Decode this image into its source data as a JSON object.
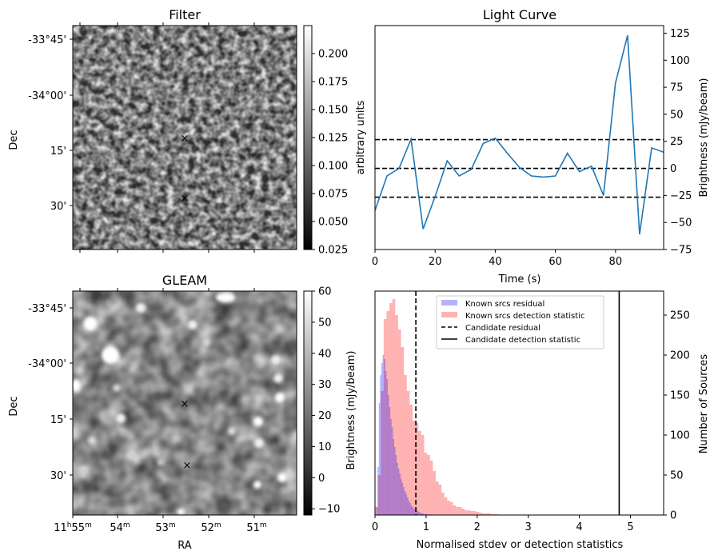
{
  "chart_data": [
    {
      "type": "heatmap",
      "title": "Filter",
      "xlabel": "",
      "ylabel": "Dec",
      "ytick_labels": [
        "-33°45'",
        "-34°00'",
        "15'",
        "30'"
      ],
      "colorbar": {
        "label": "arbitrary units",
        "range": [
          0.025,
          0.225
        ],
        "ticks": [
          0.025,
          0.05,
          0.075,
          0.1,
          0.125,
          0.15,
          0.175,
          0.2
        ],
        "tick_labels": [
          "0.025",
          "0.050",
          "0.075",
          "0.100",
          "0.125",
          "0.150",
          "0.175",
          "0.200"
        ]
      },
      "markers": [
        {
          "symbol": "×",
          "color": "#d40000",
          "label": "candidate position"
        },
        {
          "symbol": "×",
          "color": "#0000cc",
          "label": "reference position"
        }
      ]
    },
    {
      "type": "line",
      "title": "Light Curve",
      "xlabel": "Time (s)",
      "ylabel": "Brightness (mJy/beam)",
      "xlim": [
        0,
        96
      ],
      "ylim": [
        -75,
        132
      ],
      "x_ticks": [
        0,
        20,
        40,
        60,
        80
      ],
      "y_ticks": [
        -75,
        -50,
        -25,
        0,
        25,
        50,
        75,
        100,
        125
      ],
      "color": "#1f77b4",
      "x": [
        0,
        4,
        8,
        12,
        16,
        20,
        24,
        28,
        32,
        36,
        40,
        44,
        48,
        52,
        56,
        60,
        64,
        68,
        72,
        76,
        80,
        84,
        88,
        92,
        96
      ],
      "y": [
        -39,
        -7,
        0,
        27,
        -56,
        -26,
        7,
        -7,
        -1,
        23,
        28,
        14,
        1,
        -7,
        -8,
        -7,
        14,
        -3,
        2,
        -25,
        79,
        123,
        -61,
        19,
        15
      ],
      "hlines": [
        {
          "y": 26.6,
          "style": "dashed",
          "color": "#000000"
        },
        {
          "y": 0,
          "style": "dashed",
          "color": "#000000"
        },
        {
          "y": -26.6,
          "style": "dashed",
          "color": "#000000"
        }
      ]
    },
    {
      "type": "heatmap",
      "title": "GLEAM",
      "xlabel": "RA",
      "ylabel": "Dec",
      "xtick_labels": [
        {
          "h": "11",
          "hs": "h",
          "m": "55",
          "ms": "m"
        },
        {
          "h": "",
          "hs": "",
          "m": "54",
          "ms": "m"
        },
        {
          "h": "",
          "hs": "",
          "m": "53",
          "ms": "m"
        },
        {
          "h": "",
          "hs": "",
          "m": "52",
          "ms": "m"
        },
        {
          "h": "",
          "hs": "",
          "m": "51",
          "ms": "m"
        }
      ],
      "ytick_labels": [
        "-33°45'",
        "-34°00'",
        "15'",
        "30'"
      ],
      "colorbar": {
        "label": "Brightness (mJy/beam)",
        "range": [
          -12,
          60
        ],
        "ticks": [
          -10,
          0,
          10,
          20,
          30,
          40,
          50,
          60
        ],
        "tick_labels": [
          "−10",
          "0",
          "10",
          "20",
          "30",
          "40",
          "50",
          "60"
        ]
      },
      "markers": [
        {
          "symbol": "×",
          "color": "#d40000",
          "label": "candidate position"
        },
        {
          "symbol": "×",
          "color": "#0000cc",
          "label": "reference position"
        }
      ]
    },
    {
      "type": "bar",
      "subtype": "histogram",
      "title": "",
      "xlabel": "Normalised stdev or detection statistics",
      "ylabel_left": "Brightness (mJy/beam)",
      "ylabel_right": "Number of Sources",
      "xlim": [
        0,
        5.65
      ],
      "ylim": [
        0,
        280
      ],
      "x_ticks": [
        0,
        1,
        2,
        3,
        4,
        5
      ],
      "y_ticks": [
        0,
        50,
        100,
        150,
        200,
        250
      ],
      "legend_position": "top-center",
      "series": [
        {
          "name": "Known srcs residual",
          "color": "#0000ff",
          "bin_width": 0.025,
          "x_start": 0.0,
          "values": [
            0,
            10,
            60,
            140,
            175,
            190,
            200,
            195,
            180,
            170,
            150,
            135,
            120,
            110,
            95,
            85,
            75,
            65,
            58,
            52,
            45,
            40,
            35,
            30,
            26,
            22,
            18,
            15,
            12,
            10,
            8,
            7,
            6,
            5,
            4,
            3,
            2,
            2,
            1,
            1,
            1,
            1,
            0,
            1
          ]
        },
        {
          "name": "Known srcs detection statistic",
          "color": "#ff0000",
          "bin_width": 0.0566,
          "x_start": 0.0,
          "values": [
            10,
            50,
            155,
            245,
            255,
            265,
            270,
            250,
            232,
            210,
            175,
            155,
            138,
            118,
            115,
            105,
            100,
            78,
            75,
            68,
            55,
            42,
            38,
            28,
            22,
            18,
            16,
            12,
            10,
            10,
            8,
            6,
            6,
            5,
            5,
            4,
            3,
            2,
            2,
            2,
            1,
            1,
            1,
            0,
            0,
            0,
            0,
            0,
            0,
            0,
            0,
            0,
            0,
            0,
            0,
            0,
            0,
            0,
            0,
            0,
            0,
            0,
            0,
            0,
            0,
            0,
            0,
            0,
            0,
            0,
            0,
            0,
            0,
            0,
            0,
            0,
            0,
            0,
            0,
            0,
            0,
            0,
            0,
            0,
            0,
            0,
            0,
            0,
            0,
            0,
            0,
            0,
            0,
            0
          ]
        },
        {
          "name": "Candidate residual",
          "color": "#000000",
          "style": "dashed",
          "x": 0.8
        },
        {
          "name": "Candidate detection statistic",
          "color": "#000000",
          "style": "solid",
          "x": 4.78
        }
      ]
    }
  ]
}
